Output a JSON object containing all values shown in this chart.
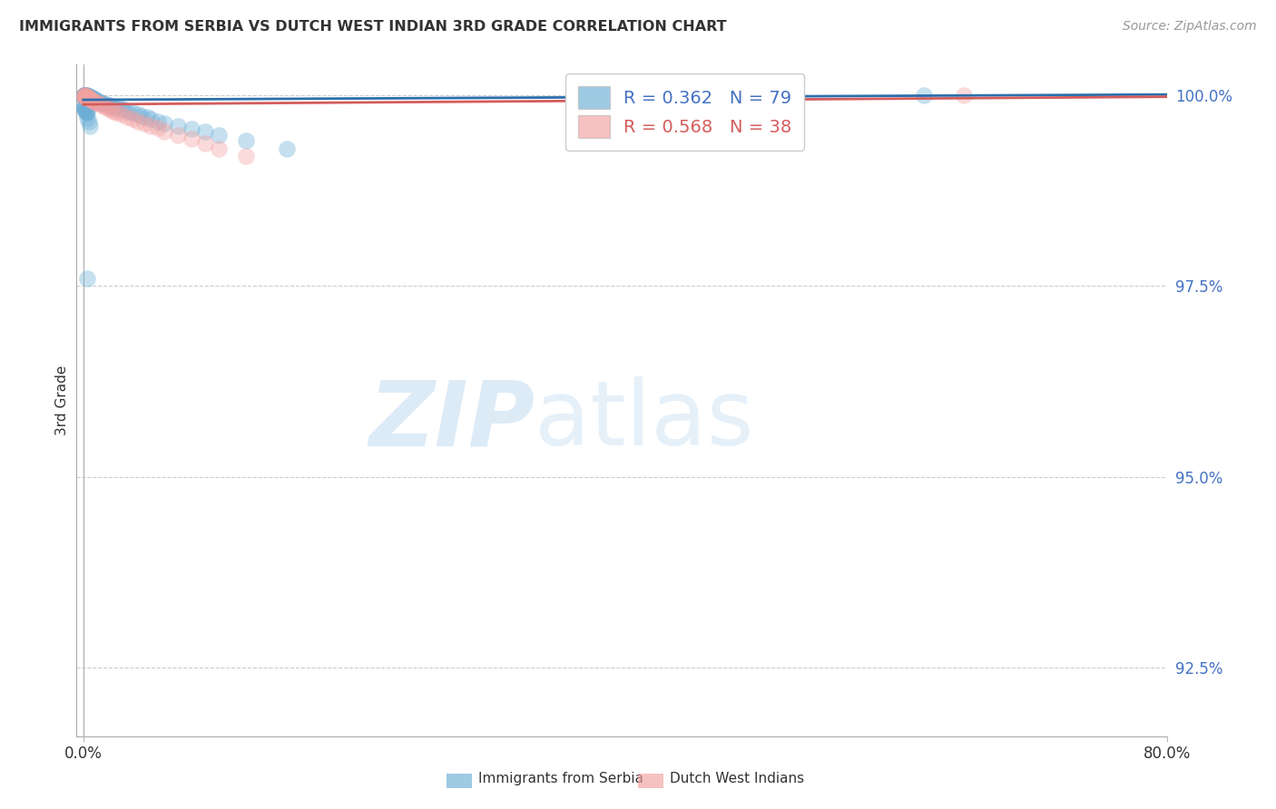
{
  "title": "IMMIGRANTS FROM SERBIA VS DUTCH WEST INDIAN 3RD GRADE CORRELATION CHART",
  "source": "Source: ZipAtlas.com",
  "ylabel": "3rd Grade",
  "legend1_r": "R = 0.362",
  "legend1_n": "N = 79",
  "legend2_r": "R = 0.568",
  "legend2_n": "N = 38",
  "blue_color": "#6baed6",
  "pink_color": "#f4a0a0",
  "blue_line_color": "#2c6fac",
  "pink_line_color": "#d45c5c",
  "blue_scatter_x": [
    0.0005,
    0.0005,
    0.0005,
    0.001,
    0.001,
    0.001,
    0.001,
    0.001,
    0.001,
    0.001,
    0.001,
    0.001,
    0.001,
    0.0015,
    0.0015,
    0.002,
    0.002,
    0.002,
    0.002,
    0.002,
    0.0025,
    0.003,
    0.003,
    0.003,
    0.003,
    0.003,
    0.003,
    0.004,
    0.004,
    0.004,
    0.005,
    0.005,
    0.005,
    0.005,
    0.006,
    0.007,
    0.007,
    0.008,
    0.009,
    0.01,
    0.011,
    0.012,
    0.013,
    0.015,
    0.017,
    0.019,
    0.021,
    0.023,
    0.025,
    0.028,
    0.03,
    0.033,
    0.036,
    0.04,
    0.043,
    0.047,
    0.05,
    0.055,
    0.06,
    0.07,
    0.08,
    0.09,
    0.1,
    0.12,
    0.15,
    0.001,
    0.001,
    0.001,
    0.001,
    0.001,
    0.002,
    0.002,
    0.002,
    0.003,
    0.003,
    0.003,
    0.004,
    0.005,
    0.62
  ],
  "blue_scatter_y": [
    1.0,
    1.0,
    1.0,
    1.0,
    1.0,
    1.0,
    1.0,
    0.9999,
    0.9999,
    0.9999,
    0.9998,
    0.9998,
    0.9997,
    1.0,
    0.9999,
    1.0,
    1.0,
    0.9999,
    0.9998,
    0.9997,
    0.9999,
    1.0,
    0.9999,
    0.9998,
    0.9997,
    0.9996,
    0.9995,
    0.9999,
    0.9998,
    0.9997,
    0.9998,
    0.9997,
    0.9996,
    0.9995,
    0.9997,
    0.9996,
    0.9995,
    0.9995,
    0.9994,
    0.9993,
    0.9992,
    0.9991,
    0.999,
    0.9989,
    0.9988,
    0.9987,
    0.9986,
    0.9985,
    0.9984,
    0.9982,
    0.9981,
    0.9979,
    0.9977,
    0.9975,
    0.9973,
    0.9971,
    0.9969,
    0.9966,
    0.9963,
    0.996,
    0.9956,
    0.9952,
    0.9948,
    0.994,
    0.993,
    0.9985,
    0.9984,
    0.9983,
    0.9982,
    0.9981,
    0.998,
    0.9979,
    0.9978,
    0.9977,
    0.997,
    0.976,
    0.9965,
    0.996,
    1.0
  ],
  "pink_scatter_x": [
    0.001,
    0.001,
    0.001,
    0.001,
    0.0015,
    0.002,
    0.002,
    0.003,
    0.003,
    0.004,
    0.004,
    0.005,
    0.006,
    0.007,
    0.008,
    0.009,
    0.01,
    0.012,
    0.014,
    0.016,
    0.018,
    0.02,
    0.022,
    0.025,
    0.028,
    0.032,
    0.036,
    0.04,
    0.045,
    0.05,
    0.055,
    0.06,
    0.07,
    0.08,
    0.09,
    0.1,
    0.12,
    0.65
  ],
  "pink_scatter_y": [
    1.0,
    1.0,
    0.9999,
    0.9998,
    0.9999,
    0.9999,
    0.9998,
    0.9998,
    0.9997,
    0.9997,
    0.9996,
    0.9995,
    0.9994,
    0.9993,
    0.9992,
    0.9991,
    0.999,
    0.9988,
    0.9987,
    0.9985,
    0.9983,
    0.9981,
    0.9979,
    0.9977,
    0.9975,
    0.9972,
    0.9969,
    0.9966,
    0.9963,
    0.996,
    0.9957,
    0.9953,
    0.9948,
    0.9943,
    0.9937,
    0.993,
    0.992,
    1.0
  ],
  "blue_trendline_x": [
    0.0,
    0.8
  ],
  "blue_trendline_y": [
    0.9994,
    1.0001
  ],
  "pink_trendline_x": [
    0.0,
    0.8
  ],
  "pink_trendline_y": [
    0.9988,
    0.9998
  ],
  "xlim": [
    -0.005,
    0.8
  ],
  "ylim": [
    0.916,
    1.004
  ],
  "ytick_values": [
    1.0,
    0.975,
    0.95,
    0.925
  ],
  "ytick_labels": [
    "100.0%",
    "97.5%",
    "95.0%",
    "92.5%"
  ],
  "xtick_values": [
    0.0,
    0.8
  ],
  "xtick_labels": [
    "0.0%",
    "80.0%"
  ],
  "background_color": "#ffffff",
  "grid_color": "#cccccc",
  "label_color": "#4472c4",
  "text_color": "#333333",
  "source_color": "#999999",
  "legend_bottom": [
    {
      "label": "Immigrants from Serbia",
      "color": "#6baed6"
    },
    {
      "label": "Dutch West Indians",
      "color": "#f4a0a0"
    }
  ]
}
